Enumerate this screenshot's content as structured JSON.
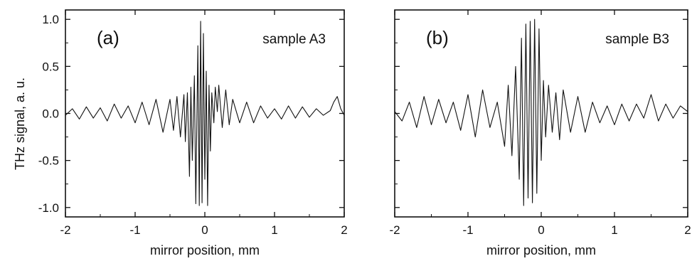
{
  "figure": {
    "ylabel": "THz signal, a. u."
  },
  "chart_data": [
    {
      "type": "line",
      "panel_label": "(a)",
      "annotation": "sample A3",
      "xlabel": "mirror position, mm",
      "ylabel": "THz signal, a. u.",
      "xlim": [
        -2,
        2
      ],
      "ylim": [
        -1.1,
        1.1
      ],
      "x_ticks": [
        -2,
        -1,
        0,
        1,
        2
      ],
      "x_tick_labels": [
        "-2",
        "-1",
        "0",
        "1",
        "2"
      ],
      "y_ticks": [
        1.0,
        0.5,
        0.0,
        -0.5,
        -1.0
      ],
      "y_tick_labels": [
        "1.0",
        "0.5",
        "0.0",
        "-0.5",
        "-1.0"
      ],
      "grid": false,
      "series": [
        {
          "x": [
            -2.0,
            -1.9,
            -1.8,
            -1.7,
            -1.6,
            -1.5,
            -1.4,
            -1.3,
            -1.2,
            -1.1,
            -1.0,
            -0.9,
            -0.8,
            -0.7,
            -0.6,
            -0.5,
            -0.45,
            -0.4,
            -0.35,
            -0.3,
            -0.28,
            -0.25,
            -0.22,
            -0.2,
            -0.18,
            -0.15,
            -0.13,
            -0.1,
            -0.08,
            -0.06,
            -0.04,
            -0.02,
            0.0,
            0.02,
            0.04,
            0.06,
            0.08,
            0.1,
            0.13,
            0.15,
            0.18,
            0.2,
            0.25,
            0.3,
            0.35,
            0.4,
            0.5,
            0.6,
            0.7,
            0.8,
            0.9,
            1.0,
            1.1,
            1.2,
            1.3,
            1.4,
            1.5,
            1.6,
            1.7,
            1.8,
            1.85,
            1.9,
            1.95,
            2.0
          ],
          "y": [
            -0.02,
            0.05,
            -0.06,
            0.07,
            -0.05,
            0.06,
            -0.08,
            0.1,
            -0.05,
            0.08,
            -0.1,
            0.12,
            -0.12,
            0.15,
            -0.2,
            0.15,
            -0.18,
            0.18,
            -0.25,
            0.2,
            -0.3,
            0.22,
            -0.67,
            0.28,
            -0.5,
            0.4,
            -0.96,
            0.72,
            -0.98,
            0.98,
            -0.95,
            0.85,
            -0.7,
            0.45,
            -0.98,
            0.3,
            -0.4,
            0.22,
            -0.1,
            0.28,
            0.02,
            0.3,
            -0.15,
            0.25,
            -0.12,
            0.15,
            -0.1,
            0.12,
            -0.1,
            0.08,
            -0.05,
            0.05,
            -0.06,
            0.08,
            -0.05,
            0.07,
            -0.04,
            0.05,
            -0.02,
            0.03,
            0.12,
            0.18,
            0.05,
            -0.02
          ]
        }
      ]
    },
    {
      "type": "line",
      "panel_label": "(b)",
      "annotation": "sample B3",
      "xlabel": "mirror position, mm",
      "xlim": [
        -2,
        2
      ],
      "ylim": [
        -1.1,
        1.1
      ],
      "x_ticks": [
        -2,
        -1,
        0,
        1,
        2
      ],
      "x_tick_labels": [
        "-2",
        "-1",
        "0",
        "1",
        "2"
      ],
      "y_ticks": [
        1.0,
        0.5,
        0.0,
        -0.5,
        -1.0
      ],
      "grid": false,
      "series": [
        {
          "x": [
            -2.0,
            -1.9,
            -1.8,
            -1.7,
            -1.6,
            -1.5,
            -1.4,
            -1.3,
            -1.2,
            -1.1,
            -1.0,
            -0.9,
            -0.8,
            -0.7,
            -0.6,
            -0.5,
            -0.45,
            -0.4,
            -0.35,
            -0.3,
            -0.27,
            -0.24,
            -0.21,
            -0.18,
            -0.15,
            -0.12,
            -0.09,
            -0.06,
            -0.03,
            0.0,
            0.03,
            0.06,
            0.1,
            0.15,
            0.2,
            0.25,
            0.3,
            0.4,
            0.5,
            0.6,
            0.7,
            0.8,
            0.9,
            1.0,
            1.1,
            1.2,
            1.3,
            1.4,
            1.5,
            1.6,
            1.7,
            1.8,
            1.9,
            2.0
          ],
          "y": [
            0.02,
            -0.08,
            0.12,
            -0.15,
            0.18,
            -0.12,
            0.15,
            -0.1,
            0.12,
            -0.18,
            0.2,
            -0.25,
            0.25,
            -0.15,
            0.12,
            -0.35,
            0.3,
            -0.45,
            0.5,
            -0.7,
            0.8,
            -0.98,
            0.95,
            -0.9,
            0.98,
            -0.95,
            1.0,
            -0.85,
            0.9,
            -0.5,
            0.35,
            -0.25,
            0.3,
            -0.2,
            0.22,
            -0.28,
            0.25,
            -0.2,
            0.18,
            -0.2,
            0.12,
            -0.1,
            0.08,
            -0.12,
            0.1,
            -0.08,
            0.1,
            -0.05,
            0.2,
            -0.08,
            0.1,
            -0.05,
            0.08,
            0.02
          ]
        }
      ]
    }
  ]
}
